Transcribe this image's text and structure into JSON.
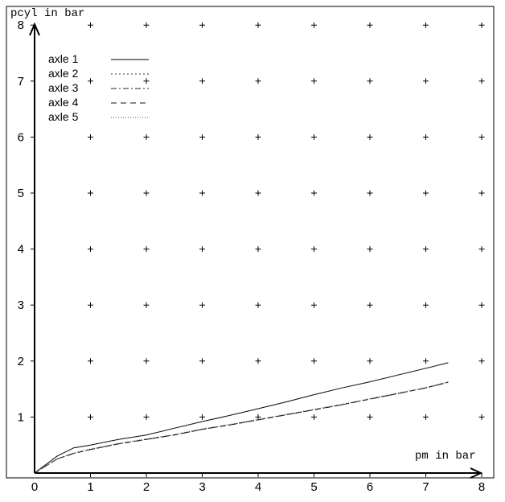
{
  "chart_data": {
    "type": "line",
    "ylabel": "pcyl in bar",
    "xlabel": "pm in bar",
    "xlim": [
      0,
      8
    ],
    "ylim": [
      0,
      8
    ],
    "x_ticks": [
      "0",
      "1",
      "2",
      "3",
      "4",
      "5",
      "6",
      "7",
      "8"
    ],
    "y_ticks": [
      "1",
      "2",
      "3",
      "4",
      "5",
      "6",
      "7",
      "8"
    ],
    "grid": "plus markers at integer intersections",
    "legend_position": "top-left",
    "series": [
      {
        "name": "axle 1",
        "style": "solid",
        "x": [
          0,
          0.4,
          0.7,
          1.0,
          1.5,
          2.0,
          2.5,
          3.0,
          3.5,
          4.0,
          4.5,
          5.0,
          5.5,
          6.0,
          6.5,
          7.0,
          7.4
        ],
        "y": [
          0,
          0.3,
          0.45,
          0.5,
          0.6,
          0.68,
          0.8,
          0.92,
          1.03,
          1.15,
          1.27,
          1.4,
          1.52,
          1.63,
          1.75,
          1.87,
          1.97
        ]
      },
      {
        "name": "axle 2",
        "style": "dotted",
        "x": [
          0,
          0.4,
          0.7,
          1.0,
          1.5,
          2.0,
          2.5,
          3.0,
          3.5,
          4.0,
          4.5,
          5.0,
          5.5,
          6.0,
          6.5,
          7.0,
          7.4
        ],
        "y": [
          0,
          0.3,
          0.45,
          0.5,
          0.6,
          0.68,
          0.8,
          0.92,
          1.03,
          1.15,
          1.27,
          1.4,
          1.52,
          1.63,
          1.75,
          1.87,
          1.97
        ]
      },
      {
        "name": "axle 3",
        "style": "dash-dot",
        "x": [
          0,
          0.4,
          0.7,
          1.0,
          1.5,
          2.0,
          2.5,
          3.0,
          3.5,
          4.0,
          4.5,
          5.0,
          5.5,
          6.0,
          6.5,
          7.0,
          7.4
        ],
        "y": [
          0,
          0.25,
          0.35,
          0.42,
          0.52,
          0.6,
          0.68,
          0.78,
          0.86,
          0.95,
          1.04,
          1.13,
          1.22,
          1.32,
          1.42,
          1.52,
          1.62
        ]
      },
      {
        "name": "axle 4",
        "style": "dashed",
        "x": [
          0,
          0.4,
          0.7,
          1.0,
          1.5,
          2.0,
          2.5,
          3.0,
          3.5,
          4.0,
          4.5,
          5.0,
          5.5,
          6.0,
          6.5,
          7.0,
          7.4
        ],
        "y": [
          0,
          0.25,
          0.35,
          0.42,
          0.52,
          0.6,
          0.68,
          0.78,
          0.86,
          0.95,
          1.04,
          1.13,
          1.22,
          1.32,
          1.42,
          1.52,
          1.62
        ]
      },
      {
        "name": "axle 5",
        "style": "fine-dotted",
        "x": [
          0,
          0.4,
          0.7,
          1.0,
          1.5,
          2.0,
          2.5,
          3.0,
          3.5,
          4.0,
          4.5,
          5.0,
          5.5,
          6.0,
          6.5,
          7.0,
          7.4
        ],
        "y": [
          0,
          0.25,
          0.36,
          0.43,
          0.53,
          0.61,
          0.69,
          0.79,
          0.87,
          0.96,
          1.05,
          1.14,
          1.23,
          1.33,
          1.43,
          1.53,
          1.63
        ]
      }
    ]
  }
}
